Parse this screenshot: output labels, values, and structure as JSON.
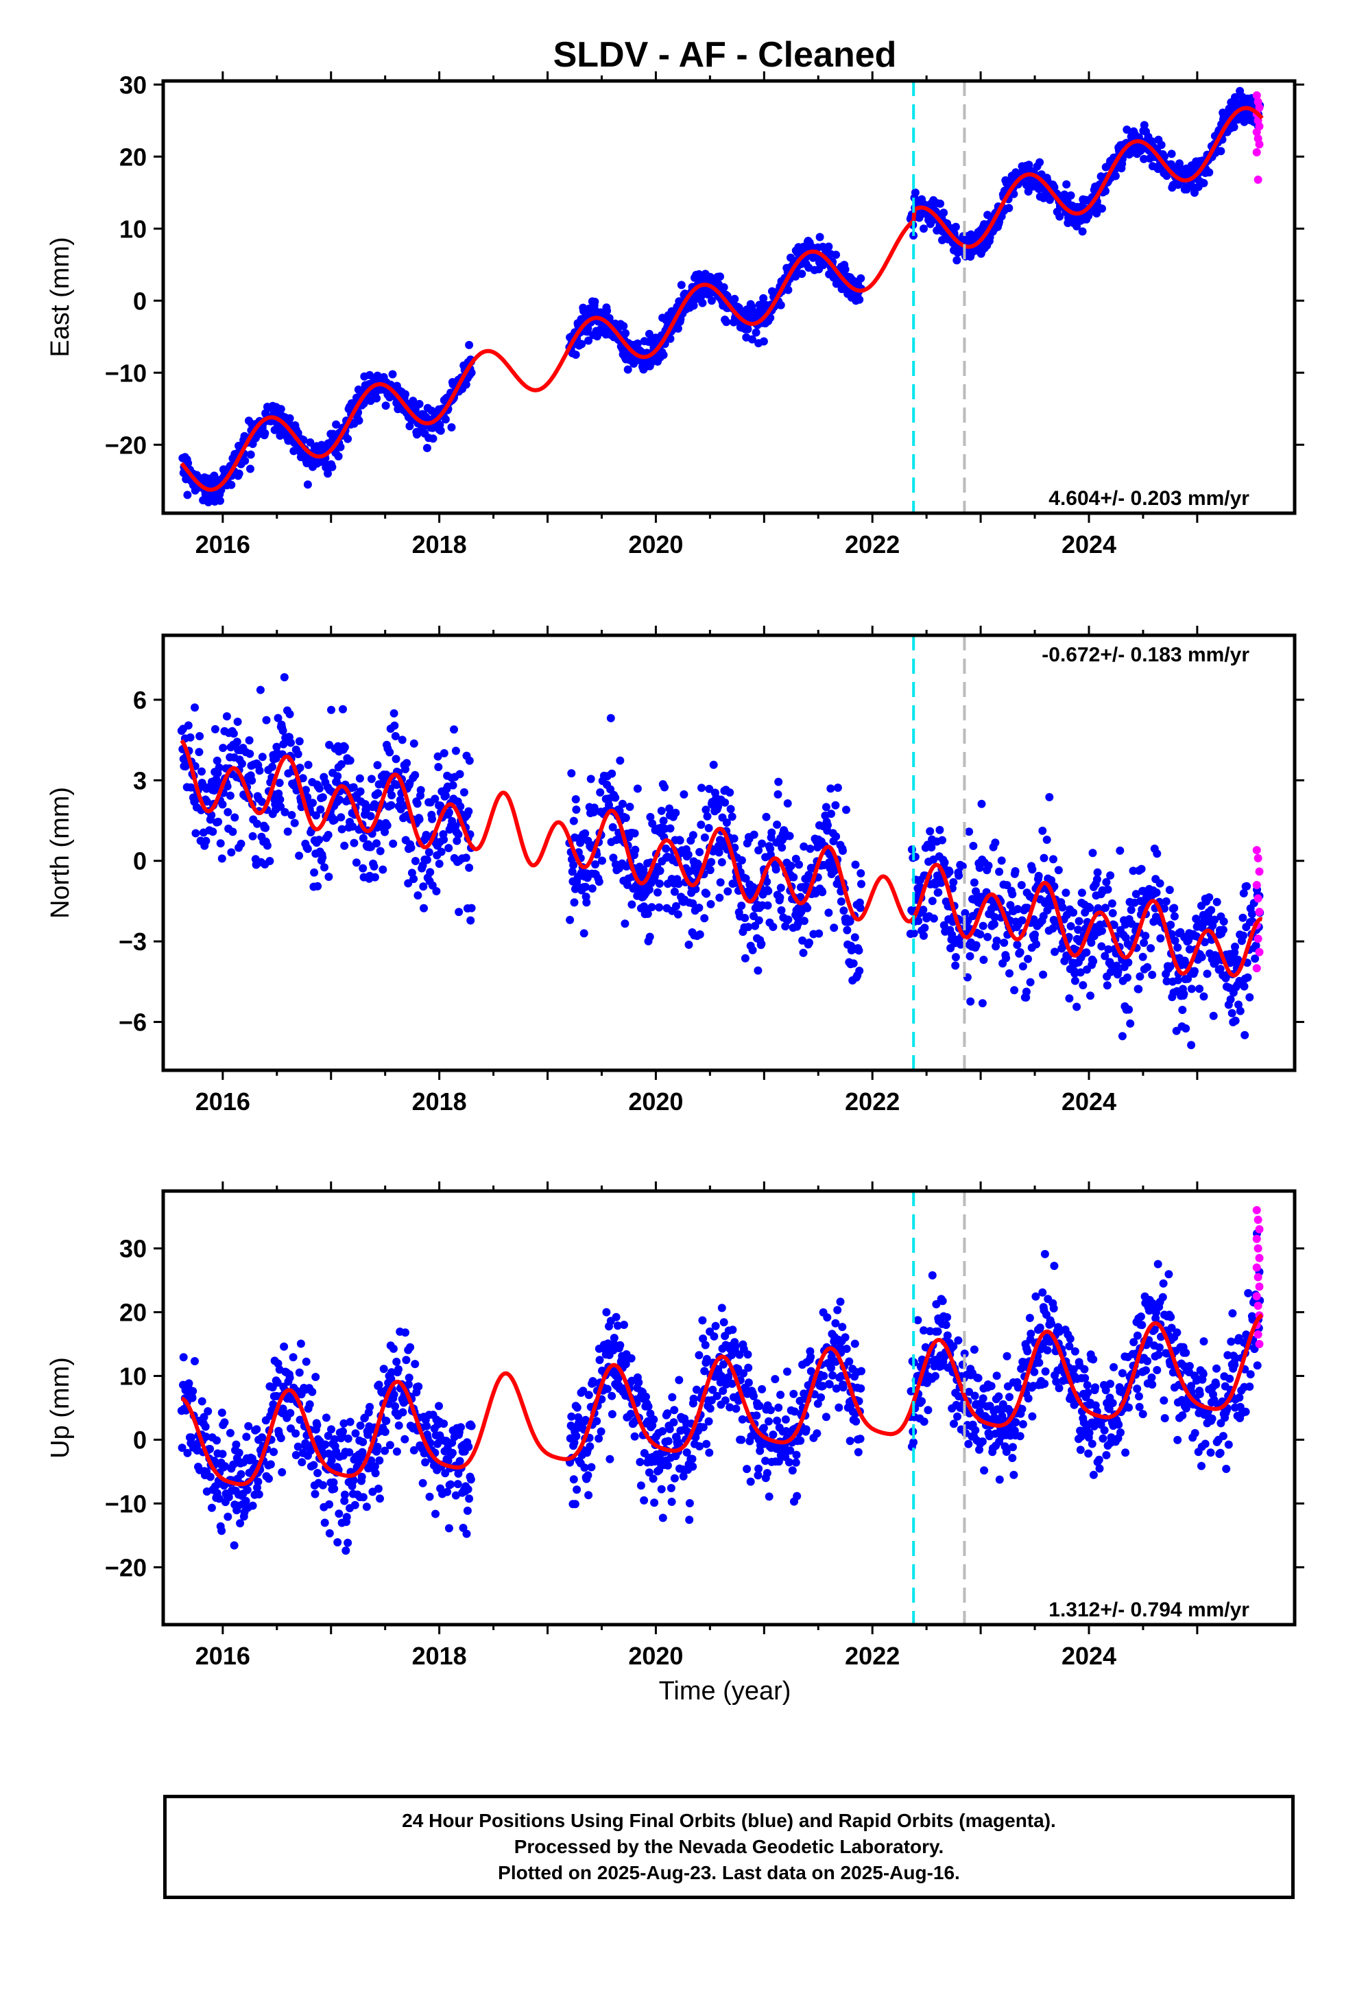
{
  "chart_data": {
    "type": "scatter",
    "title": "SLDV  - AF - Cleaned",
    "xlabel": "Time (year)",
    "xlim": [
      2015.45,
      2025.9
    ],
    "x_ticks": [
      2016,
      2018,
      2020,
      2022,
      2024
    ],
    "x_tick_labels": [
      "2016",
      "2018",
      "2020",
      "2022",
      "2024"
    ],
    "vertical_lines": [
      {
        "x": 2022.38,
        "color": "#00e5ee",
        "style": "dashed"
      },
      {
        "x": 2022.85,
        "color": "#bbbbbb",
        "style": "dashed"
      }
    ],
    "colors": {
      "final_orbits": "#0000ff",
      "rapid_orbits": "#ff00ff",
      "model": "#ff0000"
    },
    "data_gaps": [
      [
        2018.3,
        2019.2
      ],
      [
        2021.9,
        2022.35
      ]
    ],
    "panels": [
      {
        "id": "east",
        "ylabel": "East (mm)",
        "ylim": [
          -29.5,
          30.5
        ],
        "y_ticks": [
          -20,
          -10,
          0,
          10,
          20,
          30
        ],
        "y_tick_labels": [
          "−20",
          "−10",
          "0",
          "10",
          "20",
          "30"
        ],
        "rate_label": "4.604+/- 0.203 mm/yr",
        "rate_position": "bottom-right",
        "model": {
          "intercept_at_2016": -22.0,
          "rate_mm_yr": 4.604,
          "annual_amp": 3.8,
          "annual_peak": 0.42,
          "semiannual_amp": 0,
          "offset_at_2022_38": 1.5
        },
        "scatter": {
          "noise_mm": 1.1
        },
        "rapid_orbit_points": [
          28.5,
          27.6,
          26.8,
          25.9,
          25.0,
          24.2,
          23.4,
          22.5,
          21.7,
          20.6,
          16.8
        ]
      },
      {
        "id": "north",
        "ylabel": "North (mm)",
        "ylim": [
          -7.8,
          8.4
        ],
        "y_ticks": [
          -6,
          -3,
          0,
          3,
          6
        ],
        "y_tick_labels": [
          "−6",
          "−3",
          "0",
          "3",
          "6"
        ],
        "rate_label": "-0.672+/- 0.183 mm/yr",
        "rate_position": "top-right",
        "model": {
          "intercept_at_2016": 2.9,
          "rate_mm_yr": -0.672,
          "annual_amp": 0.4,
          "annual_peak": 0.55,
          "semiannual_amp": 1.0,
          "offset_at_2022_38": 0
        },
        "scatter": {
          "noise_mm": 1.2
        },
        "rapid_orbit_points": [
          0.4,
          0.1,
          -0.4,
          -0.9,
          -1.4,
          -1.9,
          -2.4,
          -2.9,
          -3.4,
          -4.0
        ]
      },
      {
        "id": "up",
        "ylabel": "Up (mm)",
        "ylim": [
          -29,
          39
        ],
        "y_ticks": [
          -20,
          -10,
          0,
          10,
          20,
          30
        ],
        "y_tick_labels": [
          "−20",
          "−10",
          "0",
          "10",
          "20",
          "30"
        ],
        "rate_label": "1.312+/- 0.794 mm/yr",
        "rate_position": "bottom-right",
        "model": {
          "intercept_at_2016": -1.5,
          "rate_mm_yr": 1.312,
          "annual_amp": 7.0,
          "annual_peak": 0.62,
          "semiannual_amp": 1.5,
          "offset_at_2022_38": 0
        },
        "scatter": {
          "noise_mm": 4.2
        },
        "rapid_orbit_points": [
          36,
          34.5,
          33,
          31.5,
          30,
          28.5,
          27,
          25.5,
          24,
          22.5,
          21,
          19.5,
          18,
          16.5,
          15
        ]
      }
    ]
  },
  "footer": {
    "line1": "24 Hour Positions Using Final Orbits (blue) and Rapid Orbits (magenta).",
    "line2": "Processed by the Nevada Geodetic Laboratory.",
    "line3": "Plotted on 2025-Aug-23. Last data on 2025-Aug-16."
  }
}
